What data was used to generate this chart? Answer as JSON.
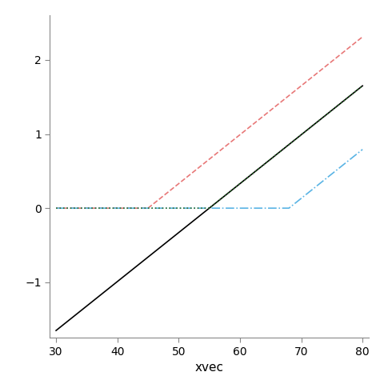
{
  "xmin": 30,
  "xmax": 80,
  "xlabel": "xvec",
  "mean_x": 55,
  "knots": [
    45,
    55,
    68
  ],
  "slope_scale": 0.066,
  "background_color": "#ffffff",
  "line_black": {
    "color": "#000000",
    "lw": 1.2,
    "ls": "solid"
  },
  "line_pink": {
    "color": "#e87878",
    "lw": 1.2,
    "ls": "--"
  },
  "line_green": {
    "color": "#2d6e2d",
    "lw": 1.2,
    "ls": ":"
  },
  "line_blue": {
    "color": "#5ab4e5",
    "lw": 1.2,
    "ls": "-."
  },
  "yticks": [
    -1,
    0,
    1,
    2
  ],
  "xticks": [
    30,
    40,
    50,
    60,
    70,
    80
  ],
  "ylim": [
    -1.75,
    2.6
  ],
  "xlim": [
    29,
    81
  ]
}
